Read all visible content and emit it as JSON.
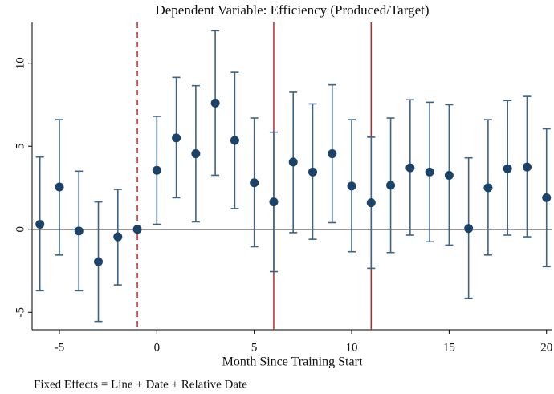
{
  "chart_data": {
    "type": "errorbar",
    "title": "Dependent Variable: Efficiency (Produced/Target)",
    "x_label": "Month Since Training Start",
    "note": "Fixed Effects = Line + Date + Relative Date",
    "x": [
      -6,
      -5,
      -4,
      -3,
      -2,
      -1,
      0,
      1,
      2,
      3,
      4,
      5,
      6,
      7,
      8,
      9,
      10,
      11,
      12,
      13,
      14,
      15,
      16,
      17,
      18,
      19,
      20
    ],
    "series": [
      {
        "color": "#1b4268",
        "values": [
          0.3,
          2.55,
          -0.1,
          -1.95,
          -0.45,
          0,
          3.55,
          5.5,
          4.55,
          7.6,
          5.35,
          2.8,
          1.65,
          4.05,
          3.45,
          4.55,
          2.6,
          1.6,
          2.65,
          3.7,
          3.45,
          3.25,
          0.05,
          2.5,
          3.65,
          3.75,
          1.9
        ],
        "lower": [
          -3.7,
          -1.55,
          -3.7,
          -5.55,
          -3.35,
          null,
          0.3,
          1.9,
          0.45,
          3.25,
          1.25,
          -1.05,
          -2.55,
          -0.2,
          -0.6,
          0.4,
          -1.35,
          -2.35,
          -1.4,
          -0.35,
          -0.75,
          -0.95,
          -4.15,
          -1.55,
          -0.35,
          -0.45,
          -2.25
        ],
        "upper": [
          4.35,
          6.6,
          3.5,
          1.65,
          2.4,
          null,
          6.8,
          9.15,
          8.65,
          11.95,
          9.45,
          6.7,
          5.85,
          8.25,
          7.55,
          8.7,
          6.6,
          5.55,
          6.7,
          7.8,
          7.65,
          7.5,
          4.3,
          6.6,
          7.75,
          8.0,
          6.05
        ]
      }
    ],
    "xlim": [
      -6.4,
      20.3
    ],
    "ylim": [
      -6.05,
      12.45
    ],
    "xticks": [
      -5,
      0,
      5,
      10,
      15,
      20
    ],
    "yticks": [
      -5,
      0,
      5,
      10
    ],
    "hline": 0,
    "vlines": [
      {
        "value": -1,
        "style": "dashed"
      },
      {
        "value": 6,
        "style": "solid"
      },
      {
        "value": 11,
        "style": "solid"
      }
    ],
    "vline_color": "#b8292f"
  }
}
